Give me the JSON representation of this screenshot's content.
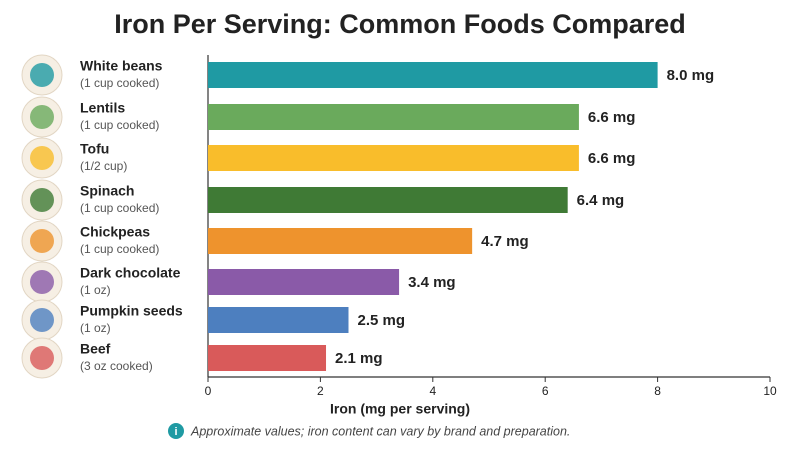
{
  "chart_data": {
    "type": "bar",
    "orientation": "horizontal",
    "title": "Iron Per Serving: Common Foods Compared",
    "categories": [
      "White beans",
      "Lentils",
      "Tofu",
      "Spinach",
      "Chickpeas",
      "Dark chocolate",
      "Pumpkin seeds",
      "Beef"
    ],
    "servings": [
      "(1 cup cooked)",
      "(1 cup cooked)",
      "(1/2 cup)",
      "(1 cup cooked)",
      "(1 cup cooked)",
      "(1 oz)",
      "(1 oz)",
      "(3 oz cooked)"
    ],
    "values": [
      8.0,
      6.6,
      6.6,
      6.4,
      4.7,
      3.4,
      2.5,
      2.1
    ],
    "value_labels": [
      "8.0 mg",
      "6.6 mg",
      "6.6 mg",
      "6.4 mg",
      "4.7 mg",
      "3.4 mg",
      "2.5 mg",
      "2.1 mg"
    ],
    "colors": [
      "#1f9aa3",
      "#6aaa5c",
      "#f9bd2b",
      "#3f7a35",
      "#ee932d",
      "#8a5aa8",
      "#4d7fbf",
      "#d95a5a"
    ],
    "xlim": [
      0,
      10
    ],
    "xticks": [
      0,
      2,
      4,
      6,
      8,
      10
    ],
    "x_label": "Iron (mg per serving)",
    "note": "Approximate values; iron content can vary by brand and preparation."
  }
}
